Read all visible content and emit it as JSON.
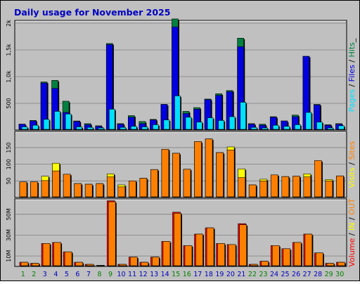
{
  "title": "Daily usage for November 2025",
  "colors": {
    "background": "#c0c0c0",
    "panel": "#c0c0c0",
    "title": "#0000c0",
    "pages": "#00e0ff",
    "files": "#0000e0",
    "hits": "#008040",
    "visits": "#ffff00",
    "sites": "#ff8000",
    "kbin": "#ffff00",
    "kbout": "#ff8000",
    "volume": "#ff0000",
    "weekend": "#008000",
    "weekday": "#0000c0"
  },
  "days": [
    "1",
    "2",
    "3",
    "4",
    "5",
    "6",
    "7",
    "8",
    "9",
    "10",
    "11",
    "12",
    "13",
    "14",
    "15",
    "16",
    "17",
    "18",
    "19",
    "20",
    "21",
    "22",
    "23",
    "24",
    "25",
    "26",
    "27",
    "28",
    "29",
    "30"
  ],
  "weekend_days": [
    "1",
    "2",
    "8",
    "9",
    "15",
    "16",
    "22",
    "23",
    "29",
    "30"
  ],
  "chart_data": [
    {
      "type": "bar",
      "ylabel_parts": [
        "Pages",
        " / ",
        "Files",
        " / ",
        "Hits",
        "_"
      ],
      "ylim": [
        0,
        2000
      ],
      "yticks": [
        {
          "value": 500,
          "label": "500"
        },
        {
          "value": 1000,
          "label": "1,0k"
        },
        {
          "value": 1500,
          "label": "1,5k"
        },
        {
          "value": 2000,
          "label": "2k"
        }
      ],
      "series": [
        {
          "name": "Hits",
          "values": [
            110,
            180,
            900,
            930,
            540,
            170,
            120,
            80,
            1620,
            120,
            270,
            160,
            200,
            480,
            2080,
            350,
            420,
            580,
            680,
            740,
            1720,
            120,
            110,
            250,
            170,
            280,
            1380,
            480,
            100,
            120
          ]
        },
        {
          "name": "Files",
          "values": [
            110,
            170,
            880,
            780,
            330,
            160,
            100,
            70,
            1600,
            110,
            240,
            120,
            190,
            480,
            1930,
            310,
            390,
            570,
            650,
            720,
            1560,
            110,
            90,
            240,
            170,
            250,
            1380,
            470,
            90,
            110
          ]
        },
        {
          "name": "Pages",
          "values": [
            60,
            90,
            200,
            350,
            300,
            60,
            50,
            40,
            390,
            50,
            70,
            60,
            100,
            190,
            640,
            240,
            150,
            230,
            180,
            250,
            520,
            50,
            40,
            90,
            70,
            100,
            330,
            150,
            40,
            80
          ]
        }
      ]
    },
    {
      "type": "bar",
      "ylabel_parts": [
        "Visits",
        " / ",
        "Sites"
      ],
      "ylim": [
        0,
        190
      ],
      "yticks": [
        {
          "value": 50,
          "label": "50"
        },
        {
          "value": 100,
          "label": "100"
        },
        {
          "value": 150,
          "label": "150"
        }
      ],
      "series": [
        {
          "name": "Visits",
          "values": [
            47,
            47,
            64,
            103,
            70,
            42,
            40,
            42,
            71,
            38,
            50,
            58,
            84,
            145,
            133,
            85,
            168,
            176,
            135,
            152,
            86,
            38,
            55,
            68,
            63,
            64,
            71,
            62,
            54,
            65
          ]
        },
        {
          "name": "Sites",
          "values": [
            47,
            47,
            51,
            80,
            70,
            42,
            40,
            42,
            62,
            32,
            50,
            58,
            84,
            145,
            133,
            85,
            168,
            176,
            135,
            143,
            60,
            38,
            50,
            68,
            63,
            64,
            62,
            111,
            50,
            65
          ]
        }
      ]
    },
    {
      "type": "bar",
      "ylabel_parts": [
        "Volume",
        " / ",
        "IN",
        " / ",
        "OUT"
      ],
      "ylim": [
        0,
        62
      ],
      "yticks": [
        {
          "value": 10,
          "label": "10M"
        },
        {
          "value": 30,
          "label": "30M"
        },
        {
          "value": 50,
          "label": "50M"
        }
      ],
      "series": [
        {
          "name": "Volume",
          "values": [
            4,
            3,
            22,
            23,
            14,
            4,
            2,
            1,
            63,
            2,
            9,
            4,
            9,
            24,
            52,
            20,
            31,
            37,
            22,
            21,
            41,
            2,
            5,
            20,
            17,
            23,
            31,
            13,
            3,
            4
          ]
        },
        {
          "name": "OUT",
          "values": [
            4,
            3,
            22,
            23,
            14,
            4,
            2,
            1,
            62,
            2,
            9,
            4,
            9,
            24,
            51,
            20,
            31,
            37,
            22,
            21,
            40,
            2,
            5,
            20,
            17,
            23,
            31,
            13,
            3,
            4
          ]
        }
      ]
    }
  ]
}
